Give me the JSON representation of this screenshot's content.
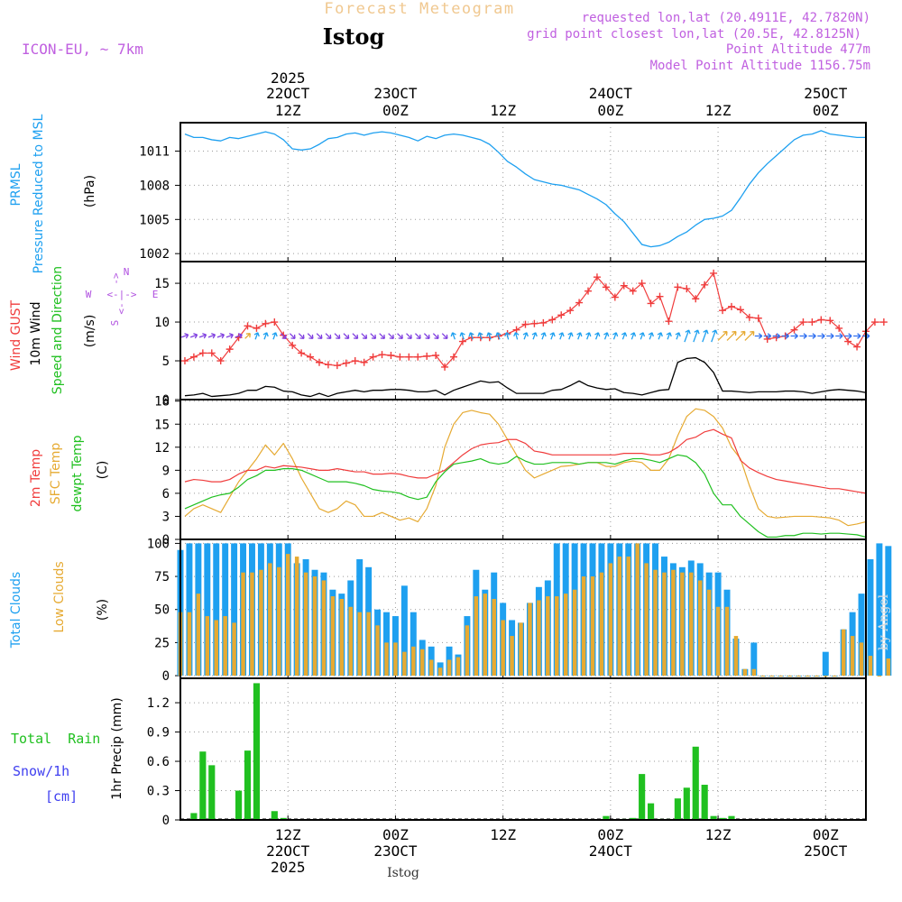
{
  "header": {
    "chart_title": "Forecast Meteogram",
    "location": "Istog",
    "model": "ICON-EU, ~ 7km",
    "requested": "requested lon,lat (20.4911E, 42.7820N)",
    "grid_point": "grid point closest lon,lat (20.5E, 42.8125N)",
    "point_altitude": "Point Altitude 477m",
    "model_altitude": "Model Point Altitude 1156.75m"
  },
  "footer": {
    "location": "Istog",
    "credit": "by Angel"
  },
  "time_axis": {
    "year": "2025",
    "top_ticks": [
      {
        "h": 12,
        "line1": "22OCT",
        "line2": "12Z"
      },
      {
        "h": 24,
        "line1": "23OCT",
        "line2": "00Z"
      },
      {
        "h": 36,
        "line1": "",
        "line2": "12Z"
      },
      {
        "h": 48,
        "line1": "24OCT",
        "line2": "00Z"
      },
      {
        "h": 60,
        "line1": "",
        "line2": "12Z"
      },
      {
        "h": 72,
        "line1": "25OCT",
        "line2": "00Z"
      }
    ],
    "bottom_ticks": [
      {
        "h": 12,
        "line1": "12Z",
        "line2": "22OCT"
      },
      {
        "h": 24,
        "line1": "00Z",
        "line2": "23OCT"
      },
      {
        "h": 36,
        "line1": "12Z",
        "line2": ""
      },
      {
        "h": 48,
        "line1": "00Z",
        "line2": "24OCT"
      },
      {
        "h": 60,
        "line1": "12Z",
        "line2": ""
      },
      {
        "h": 72,
        "line1": "00Z",
        "line2": "25OCT"
      }
    ]
  },
  "panels": {
    "pressure": {
      "label1": "PRMSL",
      "label2": "Pressure Reduced to MSL",
      "unit": "(hPa)"
    },
    "wind": {
      "gust_label": "Wind GUST",
      "wind_label": "10m Wind",
      "dir_label": "Speed and Direction",
      "unit": "(m/s)",
      "compass": {
        "n": "N",
        "s": "S",
        "w": "W",
        "e": "E"
      }
    },
    "temp": {
      "t2m_label": "2m Temp",
      "sfc_label": "SFC Temp",
      "dew_label": "dewpt Temp",
      "unit": "(C)"
    },
    "clouds": {
      "total_label": "Total Clouds",
      "low_label": "Low Clouds",
      "unit": "(%)"
    },
    "precip": {
      "rain_label": "Total  Rain",
      "snow_label": "Snow/1h",
      "snow_unit": "[cm]",
      "ylabel": "1hr Precip (mm)"
    }
  },
  "chart_data": [
    {
      "type": "line",
      "title": "PRMSL Pressure Reduced to MSL",
      "ylabel": "hPa",
      "x_hours_start": 0.5,
      "x_step_hours": 1,
      "x_range_hours": [
        0,
        76.5
      ],
      "ylim": [
        1001.3,
        1013.5
      ],
      "yticks": [
        1002,
        1005,
        1008,
        1011
      ],
      "colors": {
        "line": "#1ea0f0"
      },
      "values": [
        1012.5,
        1012.2,
        1012.2,
        1012.0,
        1011.9,
        1012.2,
        1012.1,
        1012.3,
        1012.5,
        1012.7,
        1012.5,
        1012.0,
        1011.2,
        1011.1,
        1011.2,
        1011.6,
        1012.1,
        1012.2,
        1012.5,
        1012.6,
        1012.4,
        1012.6,
        1012.7,
        1012.6,
        1012.4,
        1012.2,
        1011.9,
        1012.3,
        1012.1,
        1012.4,
        1012.5,
        1012.4,
        1012.2,
        1012.0,
        1011.6,
        1010.9,
        1010.1,
        1009.6,
        1009.0,
        1008.5,
        1008.3,
        1008.1,
        1008.0,
        1007.8,
        1007.6,
        1007.2,
        1006.8,
        1006.3,
        1005.5,
        1004.8,
        1003.8,
        1002.8,
        1002.6,
        1002.7,
        1003.0,
        1003.5,
        1003.9,
        1004.5,
        1005.0,
        1005.1,
        1005.3,
        1005.8,
        1006.9,
        1008.1,
        1009.1,
        1009.9,
        1010.6,
        1011.3,
        1012.0,
        1012.4,
        1012.5,
        1012.8,
        1012.5,
        1012.4,
        1012.3,
        1012.2,
        1012.2
      ]
    },
    {
      "type": "line",
      "title": "Wind GUST / 10m Wind Speed and Direction",
      "ylabel": "m/s",
      "x_hours_start": 0.5,
      "x_step_hours": 1,
      "ylim": [
        0,
        17.8
      ],
      "yticks": [
        0,
        5,
        10,
        15
      ],
      "colors": {
        "gust": "#f03c3c",
        "wind": "#000000"
      },
      "series": [
        {
          "name": "Wind GUST",
          "values": [
            5.0,
            5.5,
            6.0,
            6.0,
            5.0,
            6.5,
            8.0,
            9.5,
            9.2,
            9.8,
            10.0,
            8.3,
            7.0,
            6.0,
            5.5,
            4.8,
            4.5,
            4.4,
            4.7,
            5.0,
            4.8,
            5.5,
            5.8,
            5.7,
            5.5,
            5.5,
            5.5,
            5.6,
            5.7,
            4.2,
            5.5,
            7.5,
            8.0,
            8.0,
            8.0,
            8.2,
            8.5,
            9.0,
            9.7,
            9.8,
            9.9,
            10.3,
            10.9,
            11.5,
            12.5,
            14.0,
            15.8,
            14.5,
            13.2,
            14.7,
            14.0,
            15.0,
            12.4,
            13.3,
            10.1,
            14.5,
            14.3,
            13.0,
            14.8,
            16.3,
            11.5,
            12.0,
            11.6,
            10.6,
            10.5,
            7.8,
            8.0,
            8.2,
            9.0,
            10.0,
            10.0,
            10.3,
            10.2,
            9.2,
            7.5,
            6.8,
            8.8,
            10.0,
            10.0
          ]
        },
        {
          "name": "10m Wind",
          "values": [
            0.5,
            0.6,
            0.8,
            0.4,
            0.5,
            0.6,
            0.8,
            1.2,
            1.2,
            1.7,
            1.6,
            1.1,
            1.0,
            0.6,
            0.4,
            0.8,
            0.4,
            0.8,
            1.0,
            1.2,
            1.0,
            1.2,
            1.2,
            1.3,
            1.3,
            1.2,
            1.0,
            1.0,
            1.2,
            0.6,
            1.2,
            1.6,
            2.0,
            2.4,
            2.2,
            2.3,
            1.5,
            0.8,
            0.8,
            0.8,
            0.8,
            1.2,
            1.3,
            1.8,
            2.4,
            1.8,
            1.5,
            1.3,
            1.4,
            0.9,
            0.8,
            0.6,
            0.9,
            1.2,
            1.3,
            4.8,
            5.3,
            5.4,
            4.8,
            3.5,
            1.1,
            1.1,
            1.0,
            0.9,
            1.0,
            1.0,
            1.0,
            1.1,
            1.1,
            1.0,
            0.8,
            1.0,
            1.2,
            1.3,
            1.2,
            1.1,
            0.9
          ]
        }
      ],
      "wind_barb_angles_deg": [
        70,
        70,
        70,
        70,
        70,
        70,
        70,
        45,
        20,
        20,
        20,
        135,
        135,
        135,
        135,
        135,
        135,
        135,
        135,
        135,
        135,
        135,
        135,
        135,
        135,
        135,
        135,
        135,
        135,
        135,
        340,
        340,
        340,
        340,
        340,
        340,
        345,
        345,
        20,
        20,
        20,
        20,
        20,
        20,
        20,
        20,
        20,
        20,
        20,
        20,
        20,
        20,
        20,
        20,
        20,
        20,
        20,
        20,
        20,
        20,
        45,
        45,
        45,
        45,
        90,
        90,
        90,
        90,
        90,
        90,
        90,
        90,
        90,
        90,
        90,
        90,
        90
      ]
    },
    {
      "type": "line",
      "title": "2m Temp / SFC Temp / dewpt Temp",
      "ylabel": "C",
      "x_hours_start": 0.5,
      "x_step_hours": 1,
      "ylim": [
        0,
        18.2
      ],
      "yticks": [
        0,
        3,
        6,
        9,
        12,
        15,
        18
      ],
      "colors": {
        "t2m": "#f03c3c",
        "sfc": "#e6aa32",
        "dew": "#20c020"
      },
      "series": [
        {
          "name": "2m Temp",
          "values": [
            7.5,
            7.8,
            7.7,
            7.5,
            7.5,
            7.8,
            8.5,
            9.0,
            9.0,
            9.5,
            9.3,
            9.6,
            9.5,
            9.4,
            9.2,
            9.0,
            9.0,
            9.2,
            9.0,
            8.8,
            8.8,
            8.5,
            8.5,
            8.6,
            8.5,
            8.2,
            8.0,
            8.0,
            8.5,
            9.0,
            10.0,
            11.0,
            11.8,
            12.3,
            12.5,
            12.6,
            13.0,
            13.0,
            12.5,
            11.5,
            11.3,
            11.0,
            11.0,
            11.0,
            11.0,
            11.0,
            11.0,
            11.0,
            11.0,
            11.2,
            11.2,
            11.2,
            11.0,
            11.0,
            11.3,
            12.0,
            13.0,
            13.3,
            14.0,
            14.3,
            13.7,
            13.2,
            10.3,
            9.3,
            8.7,
            8.2,
            7.8,
            7.6,
            7.4,
            7.2,
            7.0,
            6.8,
            6.6,
            6.6,
            6.4,
            6.2,
            6.0
          ]
        },
        {
          "name": "SFC Temp",
          "values": [
            3.0,
            4.0,
            4.5,
            4.0,
            3.5,
            5.5,
            7.5,
            9.0,
            10.5,
            12.3,
            11.0,
            12.5,
            10.5,
            8.0,
            6.0,
            4.0,
            3.5,
            4.0,
            5.0,
            4.5,
            3.0,
            3.0,
            3.5,
            3.0,
            2.5,
            2.8,
            2.3,
            4.0,
            7.0,
            12.0,
            15.0,
            16.5,
            16.8,
            16.5,
            16.3,
            15.0,
            13.0,
            11.0,
            9.0,
            8.0,
            8.5,
            9.0,
            9.5,
            9.6,
            9.8,
            10.0,
            10.0,
            9.5,
            9.5,
            10.0,
            10.2,
            10.0,
            9.0,
            9.0,
            10.5,
            13.5,
            16.0,
            17.0,
            16.8,
            16.0,
            14.5,
            12.0,
            10.5,
            7.0,
            4.0,
            3.0,
            2.8,
            2.9,
            3.0,
            3.0,
            3.0,
            2.9,
            2.8,
            2.5,
            1.8,
            2.0,
            2.3
          ]
        },
        {
          "name": "dewpt Temp",
          "values": [
            4.0,
            4.5,
            5.0,
            5.5,
            5.8,
            6.0,
            6.8,
            7.8,
            8.3,
            9.0,
            9.0,
            9.2,
            9.2,
            9.0,
            8.5,
            8.0,
            7.5,
            7.5,
            7.5,
            7.3,
            7.0,
            6.5,
            6.3,
            6.2,
            6.0,
            5.5,
            5.2,
            5.5,
            7.5,
            8.8,
            9.8,
            10.0,
            10.2,
            10.5,
            10.0,
            9.8,
            10.0,
            10.8,
            10.2,
            9.8,
            9.8,
            10.0,
            10.0,
            10.0,
            9.8,
            10.0,
            10.0,
            10.0,
            9.8,
            10.2,
            10.5,
            10.5,
            10.3,
            10.0,
            10.5,
            11.0,
            10.8,
            10.0,
            8.5,
            6.0,
            4.5,
            4.5,
            3.0,
            2.0,
            1.0,
            0.3,
            0.3,
            0.5,
            0.5,
            0.8,
            0.8,
            0.7,
            0.8,
            0.8,
            0.7,
            0.6,
            0.3
          ]
        }
      ]
    },
    {
      "type": "bar",
      "title": "Total Clouds / Low Clouds",
      "ylabel": "%",
      "x_hours_start": 0.5,
      "x_step_hours": 1,
      "ylim": [
        -2,
        103
      ],
      "yticks": [
        0,
        25,
        50,
        75,
        100
      ],
      "colors": {
        "total": "#1ea0f0",
        "low": "#e6aa32"
      },
      "series": [
        {
          "name": "Total Clouds",
          "values": [
            95,
            100,
            100,
            100,
            100,
            100,
            100,
            100,
            100,
            100,
            100,
            100,
            100,
            85,
            88,
            80,
            78,
            65,
            62,
            72,
            88,
            82,
            50,
            48,
            45,
            68,
            48,
            27,
            22,
            10,
            22,
            16,
            45,
            80,
            65,
            78,
            55,
            42,
            40,
            55,
            67,
            72,
            100,
            100,
            100,
            100,
            100,
            100,
            100,
            100,
            100,
            100,
            100,
            100,
            90,
            85,
            82,
            87,
            85,
            78,
            78,
            65,
            28,
            5,
            25,
            0,
            0,
            0,
            0,
            0,
            0,
            0,
            18,
            0,
            35,
            48,
            62,
            88,
            100,
            98
          ]
        },
        {
          "name": "Low Clouds",
          "values": [
            48,
            48,
            62,
            45,
            42,
            45,
            40,
            78,
            78,
            80,
            85,
            82,
            92,
            90,
            78,
            75,
            72,
            60,
            58,
            52,
            48,
            48,
            38,
            25,
            25,
            18,
            22,
            20,
            12,
            6,
            12,
            14,
            38,
            60,
            62,
            58,
            42,
            30,
            40,
            55,
            57,
            60,
            60,
            62,
            65,
            75,
            75,
            78,
            85,
            90,
            90,
            100,
            85,
            80,
            78,
            80,
            78,
            78,
            72,
            65,
            52,
            52,
            30,
            5,
            5,
            0,
            0,
            0,
            0,
            0,
            0,
            0,
            0,
            0,
            35,
            30,
            25,
            15,
            0,
            13
          ]
        }
      ]
    },
    {
      "type": "bar",
      "title": "1hr Precip",
      "ylabel": "1hr Precip (mm)",
      "x_hours_start": 0.5,
      "x_step_hours": 1,
      "ylim": [
        0,
        1.45
      ],
      "yticks": [
        0,
        0.3,
        0.6,
        0.9,
        1.2
      ],
      "colors": {
        "rain": "#20c020",
        "snow": "#4040f0"
      },
      "series": [
        {
          "name": "Total Rain",
          "values": [
            0.0,
            0.07,
            0.7,
            0.56,
            0.0,
            0.0,
            0.3,
            0.71,
            1.4,
            0.0,
            0.09,
            0.02,
            0.0,
            0.0,
            0.0,
            0.0,
            0.0,
            0.0,
            0.0,
            0.0,
            0.0,
            0.0,
            0.0,
            0.0,
            0.0,
            0.0,
            0.0,
            0.0,
            0.0,
            0.0,
            0.0,
            0.0,
            0.0,
            0.0,
            0.0,
            0.0,
            0.0,
            0.0,
            0.0,
            0.0,
            0.0,
            0.0,
            0.0,
            0.0,
            0.0,
            0.0,
            0.0,
            0.04,
            0.0,
            0.01,
            0.02,
            0.47,
            0.17,
            0.01,
            0.01,
            0.22,
            0.33,
            0.75,
            0.36,
            0.04,
            0.02,
            0.04,
            0.0,
            0.0,
            0.0,
            0.0,
            0.0,
            0.0,
            0.0,
            0.0,
            0.0,
            0.0,
            0.0,
            0.0,
            0.0,
            0.0,
            0.0,
            0.0,
            0.0,
            0.0
          ]
        },
        {
          "name": "Snow/1h",
          "values": []
        }
      ]
    }
  ]
}
